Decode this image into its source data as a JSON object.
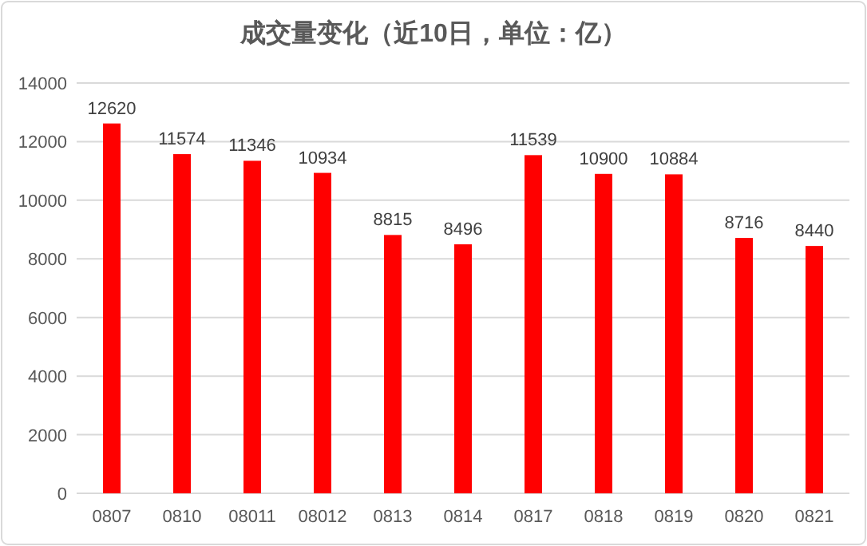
{
  "chart_data": {
    "type": "bar",
    "title": "成交量变化（近10日，单位：亿）",
    "categories": [
      "0807",
      "0810",
      "08011",
      "08012",
      "0813",
      "0814",
      "0817",
      "0818",
      "0819",
      "0820",
      "0821"
    ],
    "values": [
      12620,
      11574,
      11346,
      10934,
      8815,
      8496,
      11539,
      10900,
      10884,
      8716,
      8440
    ],
    "color": "#ff0000",
    "ylim": [
      0,
      14000
    ],
    "yticks": [
      0,
      2000,
      4000,
      6000,
      8000,
      10000,
      12000,
      14000
    ],
    "grid": "y",
    "data_labels": true
  }
}
